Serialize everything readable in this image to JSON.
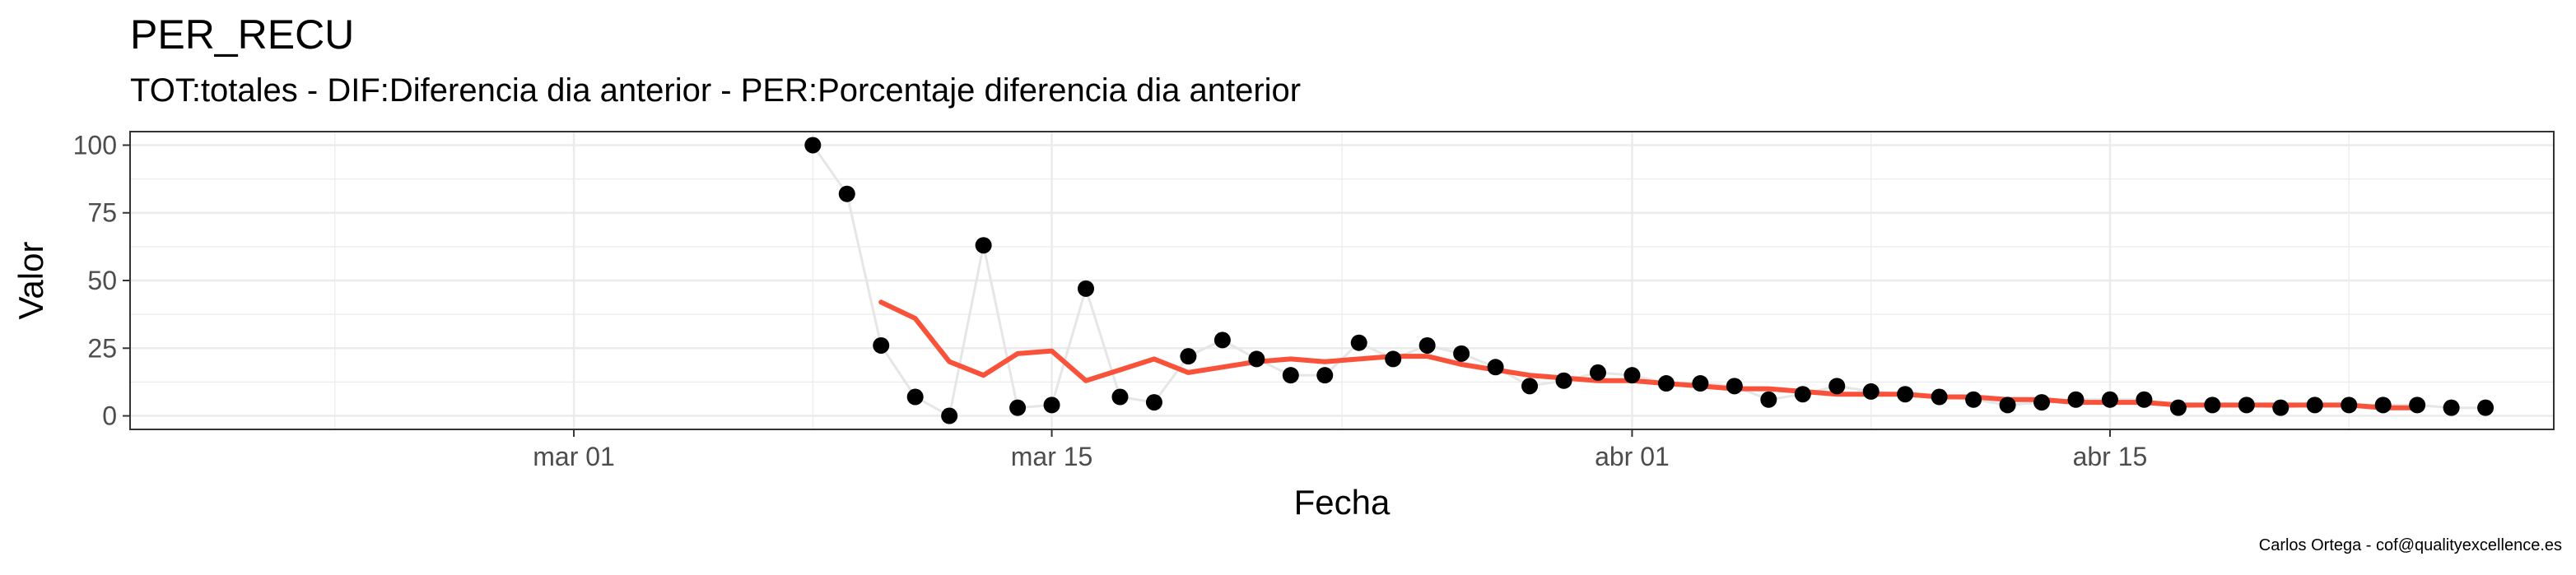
{
  "title": "PER_RECU",
  "subtitle": "TOT:totales - DIF:Diferencia dia anterior - PER:Porcentaje diferencia dia anterior",
  "caption": "Carlos Ortega - cof@qualityexcellence.es",
  "colors": {
    "points": "#000000",
    "raw_line": "#e6e6e6",
    "smooth_line": "#f8523a",
    "grid": "#ebebeb",
    "panel_border": "#333333"
  },
  "chart_data": {
    "type": "line",
    "xlabel": "Fecha",
    "ylabel": "Valor",
    "x_axis_kind": "date",
    "xlim": [
      "2020-02-17",
      "2020-04-28"
    ],
    "ylim": [
      -5,
      105
    ],
    "x_ticks": [
      {
        "date": "2020-03-01",
        "label": "mar 01"
      },
      {
        "date": "2020-03-15",
        "label": "mar 15"
      },
      {
        "date": "2020-04-01",
        "label": "abr 01"
      },
      {
        "date": "2020-04-15",
        "label": "abr 15"
      }
    ],
    "y_ticks": [
      0,
      25,
      50,
      75,
      100
    ],
    "grid": true,
    "legend": "none",
    "series": [
      {
        "style": "points-with-thin-line",
        "x": [
          "2020-03-08",
          "2020-03-09",
          "2020-03-10",
          "2020-03-11",
          "2020-03-12",
          "2020-03-13",
          "2020-03-14",
          "2020-03-15",
          "2020-03-16",
          "2020-03-17",
          "2020-03-18",
          "2020-03-19",
          "2020-03-20",
          "2020-03-21",
          "2020-03-22",
          "2020-03-23",
          "2020-03-24",
          "2020-03-25",
          "2020-03-26",
          "2020-03-27",
          "2020-03-28",
          "2020-03-29",
          "2020-03-30",
          "2020-03-31",
          "2020-04-01",
          "2020-04-02",
          "2020-04-03",
          "2020-04-04",
          "2020-04-05",
          "2020-04-06",
          "2020-04-07",
          "2020-04-08",
          "2020-04-09",
          "2020-04-10",
          "2020-04-11",
          "2020-04-12",
          "2020-04-13",
          "2020-04-14",
          "2020-04-15",
          "2020-04-16",
          "2020-04-17",
          "2020-04-18",
          "2020-04-19",
          "2020-04-20",
          "2020-04-21",
          "2020-04-22",
          "2020-04-23",
          "2020-04-24",
          "2020-04-25",
          "2020-04-26"
        ],
        "y": [
          100,
          82,
          26,
          7,
          0,
          63,
          3,
          4,
          47,
          7,
          5,
          22,
          28,
          21,
          15,
          15,
          27,
          21,
          26,
          23,
          18,
          11,
          13,
          16,
          15,
          12,
          12,
          11,
          6,
          8,
          11,
          9,
          8,
          7,
          6,
          4,
          5,
          6,
          6,
          6,
          3,
          4,
          4,
          3,
          4,
          4,
          4,
          4,
          3,
          3
        ]
      },
      {
        "style": "smooth-line",
        "x": [
          "2020-03-10",
          "2020-03-11",
          "2020-03-12",
          "2020-03-13",
          "2020-03-14",
          "2020-03-15",
          "2020-03-16",
          "2020-03-17",
          "2020-03-18",
          "2020-03-19",
          "2020-03-20",
          "2020-03-21",
          "2020-03-22",
          "2020-03-23",
          "2020-03-24",
          "2020-03-25",
          "2020-03-26",
          "2020-03-27",
          "2020-03-28",
          "2020-03-29",
          "2020-03-30",
          "2020-03-31",
          "2020-04-01",
          "2020-04-02",
          "2020-04-03",
          "2020-04-04",
          "2020-04-05",
          "2020-04-06",
          "2020-04-07",
          "2020-04-08",
          "2020-04-09",
          "2020-04-10",
          "2020-04-11",
          "2020-04-12",
          "2020-04-13",
          "2020-04-14",
          "2020-04-15",
          "2020-04-16",
          "2020-04-17",
          "2020-04-18",
          "2020-04-19",
          "2020-04-20",
          "2020-04-21",
          "2020-04-22",
          "2020-04-23",
          "2020-04-24"
        ],
        "y": [
          42,
          36,
          20,
          15,
          23,
          24,
          13,
          17,
          21,
          16,
          18,
          20,
          21,
          20,
          21,
          22,
          22,
          19,
          17,
          15,
          14,
          13,
          13,
          12,
          11,
          10,
          10,
          9,
          8,
          8,
          8,
          7,
          7,
          6,
          6,
          5,
          5,
          5,
          4,
          4,
          4,
          4,
          4,
          4,
          3,
          3
        ]
      }
    ]
  }
}
